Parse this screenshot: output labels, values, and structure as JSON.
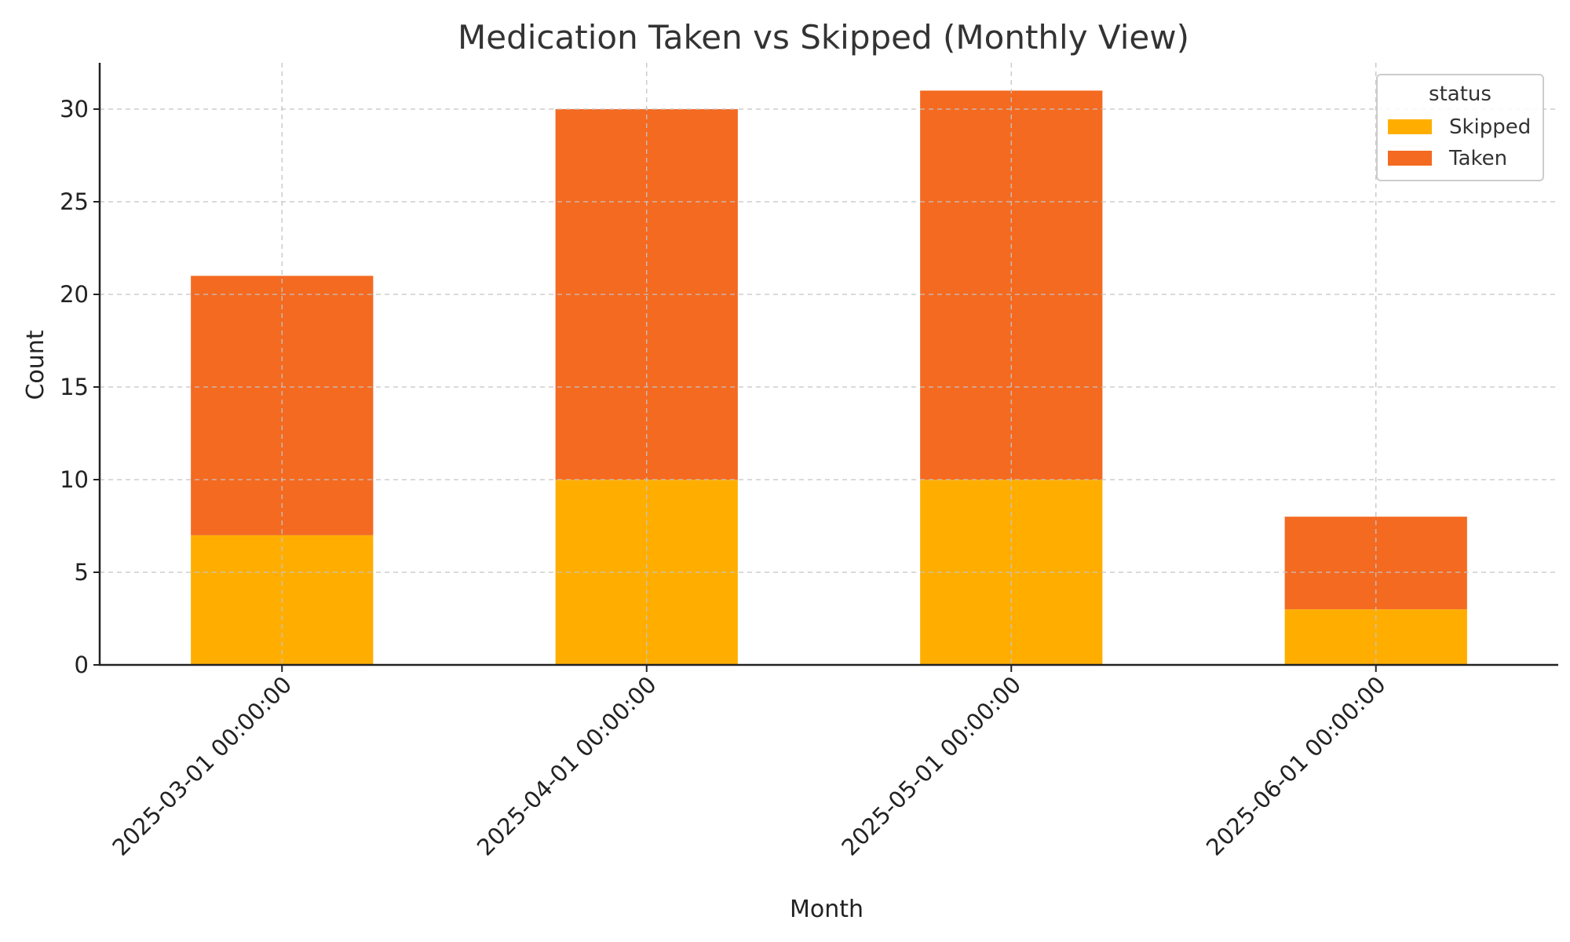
{
  "chart_data": {
    "type": "bar",
    "stacked": true,
    "title": "Medication Taken vs Skipped (Monthly View)",
    "xlabel": "Month",
    "ylabel": "Count",
    "categories": [
      "2025-03-01 00:00:00",
      "2025-04-01 00:00:00",
      "2025-05-01 00:00:00",
      "2025-06-01 00:00:00"
    ],
    "series": [
      {
        "name": "Skipped",
        "values": [
          7,
          10,
          10,
          3
        ],
        "color": "#FFAE00"
      },
      {
        "name": "Taken",
        "values": [
          14,
          20,
          21,
          5
        ],
        "color": "#F46A21"
      }
    ],
    "ylim": [
      0,
      32.5
    ],
    "yticks": [
      0,
      5,
      10,
      15,
      20,
      25,
      30
    ],
    "grid": true,
    "legend": {
      "title": "status",
      "position": "top-right"
    }
  }
}
